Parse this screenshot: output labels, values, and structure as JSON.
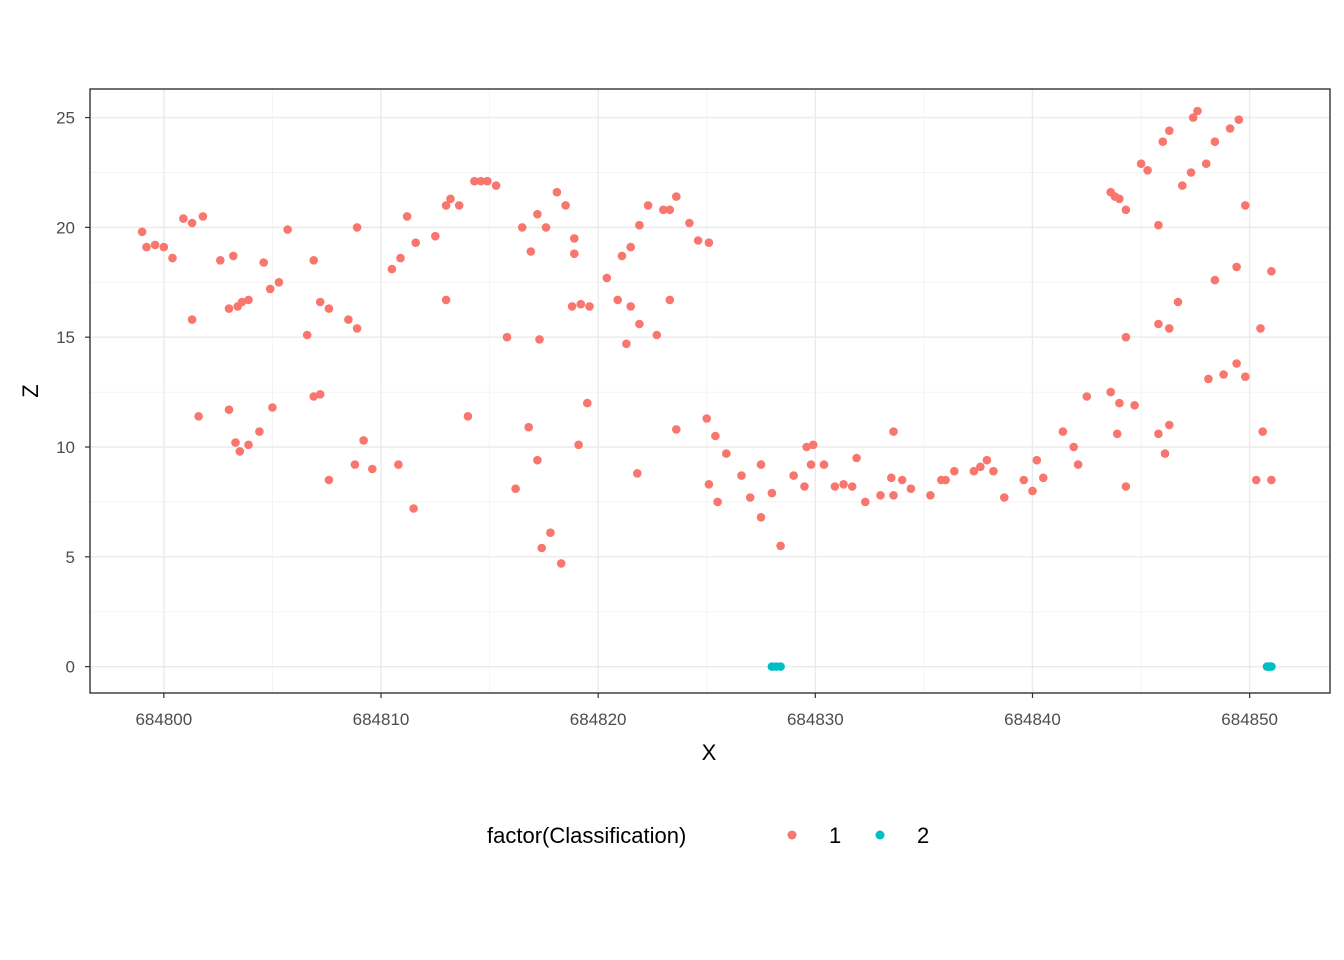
{
  "chart_data": {
    "type": "scatter",
    "xlabel": "X",
    "ylabel": "Z",
    "xlim": [
      684796.6,
      684853.7
    ],
    "ylim": [
      -1.2,
      26.3
    ],
    "x_ticks": [
      684800,
      684810,
      684820,
      684830,
      684840,
      684850
    ],
    "y_ticks": [
      0,
      5,
      10,
      15,
      20,
      25
    ],
    "x_tick_labels": [
      "684800",
      "684810",
      "684820",
      "684830",
      "684840",
      "684850"
    ],
    "y_tick_labels": [
      "0",
      "5",
      "10",
      "15",
      "20",
      "25"
    ],
    "grid": true,
    "legend": {
      "title": "factor(Classification)",
      "position": "bottom"
    },
    "series": [
      {
        "name": "1",
        "color": "#F8766D",
        "points": [
          [
            684799.0,
            19.8
          ],
          [
            684799.2,
            19.1
          ],
          [
            684799.6,
            19.2
          ],
          [
            684800.0,
            19.1
          ],
          [
            684800.4,
            18.6
          ],
          [
            684800.9,
            20.4
          ],
          [
            684801.3,
            20.2
          ],
          [
            684801.3,
            15.8
          ],
          [
            684801.6,
            11.4
          ],
          [
            684801.8,
            20.5
          ],
          [
            684802.6,
            18.5
          ],
          [
            684803.0,
            11.7
          ],
          [
            684803.0,
            16.3
          ],
          [
            684803.2,
            18.7
          ],
          [
            684803.3,
            10.2
          ],
          [
            684803.4,
            16.4
          ],
          [
            684803.5,
            9.8
          ],
          [
            684803.6,
            16.6
          ],
          [
            684803.9,
            10.1
          ],
          [
            684803.9,
            16.7
          ],
          [
            684804.4,
            10.7
          ],
          [
            684804.6,
            18.4
          ],
          [
            684804.9,
            17.2
          ],
          [
            684805.0,
            11.8
          ],
          [
            684805.3,
            17.5
          ],
          [
            684805.7,
            19.9
          ],
          [
            684806.6,
            15.1
          ],
          [
            684806.9,
            18.5
          ],
          [
            684806.9,
            12.3
          ],
          [
            684807.2,
            12.4
          ],
          [
            684807.2,
            16.6
          ],
          [
            684807.6,
            8.5
          ],
          [
            684807.6,
            16.3
          ],
          [
            684808.5,
            15.8
          ],
          [
            684808.8,
            9.2
          ],
          [
            684808.9,
            20.0
          ],
          [
            684808.9,
            15.4
          ],
          [
            684809.2,
            10.3
          ],
          [
            684809.6,
            9.0
          ],
          [
            684810.5,
            18.1
          ],
          [
            684810.8,
            9.2
          ],
          [
            684810.9,
            18.6
          ],
          [
            684811.2,
            20.5
          ],
          [
            684811.5,
            7.2
          ],
          [
            684811.6,
            19.3
          ],
          [
            684812.5,
            19.6
          ],
          [
            684813.0,
            21.0
          ],
          [
            684813.0,
            16.7
          ],
          [
            684813.2,
            21.3
          ],
          [
            684813.6,
            21.0
          ],
          [
            684814.0,
            11.4
          ],
          [
            684814.3,
            22.1
          ],
          [
            684814.6,
            22.1
          ],
          [
            684814.9,
            22.1
          ],
          [
            684815.3,
            21.9
          ],
          [
            684815.8,
            15.0
          ],
          [
            684816.2,
            8.1
          ],
          [
            684816.5,
            20.0
          ],
          [
            684816.8,
            10.9
          ],
          [
            684816.9,
            18.9
          ],
          [
            684817.2,
            20.6
          ],
          [
            684817.3,
            14.9
          ],
          [
            684817.2,
            9.4
          ],
          [
            684817.4,
            5.4
          ],
          [
            684817.6,
            20.0
          ],
          [
            684817.8,
            6.1
          ],
          [
            684818.1,
            21.6
          ],
          [
            684818.3,
            4.7
          ],
          [
            684818.5,
            21.0
          ],
          [
            684818.8,
            16.4
          ],
          [
            684818.9,
            18.8
          ],
          [
            684818.9,
            19.5
          ],
          [
            684819.2,
            16.5
          ],
          [
            684819.1,
            10.1
          ],
          [
            684819.5,
            12.0
          ],
          [
            684819.6,
            16.4
          ],
          [
            684820.4,
            17.7
          ],
          [
            684820.9,
            16.7
          ],
          [
            684821.1,
            18.7
          ],
          [
            684821.3,
            14.7
          ],
          [
            684821.5,
            16.4
          ],
          [
            684821.5,
            19.1
          ],
          [
            684821.8,
            8.8
          ],
          [
            684821.9,
            15.6
          ],
          [
            684821.9,
            20.1
          ],
          [
            684822.3,
            21.0
          ],
          [
            684822.7,
            15.1
          ],
          [
            684823.0,
            20.8
          ],
          [
            684823.3,
            20.8
          ],
          [
            684823.3,
            16.7
          ],
          [
            684823.6,
            21.4
          ],
          [
            684823.6,
            10.8
          ],
          [
            684824.2,
            20.2
          ],
          [
            684824.6,
            19.4
          ],
          [
            684825.0,
            11.3
          ],
          [
            684825.1,
            19.3
          ],
          [
            684825.1,
            8.3
          ],
          [
            684825.4,
            10.5
          ],
          [
            684825.5,
            7.5
          ],
          [
            684825.9,
            9.7
          ],
          [
            684826.6,
            8.7
          ],
          [
            684827.0,
            7.7
          ],
          [
            684827.5,
            6.8
          ],
          [
            684827.5,
            9.2
          ],
          [
            684828.0,
            7.9
          ],
          [
            684828.4,
            5.5
          ],
          [
            684829.0,
            8.7
          ],
          [
            684829.5,
            8.2
          ],
          [
            684829.6,
            10.0
          ],
          [
            684829.8,
            9.2
          ],
          [
            684829.9,
            10.1
          ],
          [
            684830.4,
            9.2
          ],
          [
            684830.9,
            8.2
          ],
          [
            684831.3,
            8.3
          ],
          [
            684831.7,
            8.2
          ],
          [
            684831.9,
            9.5
          ],
          [
            684832.3,
            7.5
          ],
          [
            684833.0,
            7.8
          ],
          [
            684833.5,
            8.6
          ],
          [
            684833.6,
            7.8
          ],
          [
            684833.6,
            10.7
          ],
          [
            684834.0,
            8.5
          ],
          [
            684834.4,
            8.1
          ],
          [
            684835.3,
            7.8
          ],
          [
            684835.8,
            8.5
          ],
          [
            684836.0,
            8.5
          ],
          [
            684836.4,
            8.9
          ],
          [
            684837.3,
            8.9
          ],
          [
            684837.6,
            9.1
          ],
          [
            684837.9,
            9.4
          ],
          [
            684838.2,
            8.9
          ],
          [
            684838.7,
            7.7
          ],
          [
            684839.6,
            8.5
          ],
          [
            684840.0,
            8.0
          ],
          [
            684840.2,
            9.4
          ],
          [
            684840.5,
            8.6
          ],
          [
            684841.4,
            10.7
          ],
          [
            684841.9,
            10.0
          ],
          [
            684842.1,
            9.2
          ],
          [
            684842.5,
            12.3
          ],
          [
            684843.6,
            12.5
          ],
          [
            684843.6,
            21.6
          ],
          [
            684843.8,
            21.4
          ],
          [
            684843.9,
            10.6
          ],
          [
            684844.0,
            21.3
          ],
          [
            684844.0,
            12.0
          ],
          [
            684844.3,
            8.2
          ],
          [
            684844.3,
            15.0
          ],
          [
            684844.3,
            20.8
          ],
          [
            684844.7,
            11.9
          ],
          [
            684845.0,
            22.9
          ],
          [
            684845.3,
            22.6
          ],
          [
            684845.8,
            20.1
          ],
          [
            684845.8,
            10.6
          ],
          [
            684845.8,
            15.6
          ],
          [
            684846.0,
            23.9
          ],
          [
            684846.1,
            9.7
          ],
          [
            684846.3,
            15.4
          ],
          [
            684846.3,
            11.0
          ],
          [
            684846.3,
            24.4
          ],
          [
            684846.7,
            16.6
          ],
          [
            684846.9,
            21.9
          ],
          [
            684847.3,
            22.5
          ],
          [
            684847.4,
            25.0
          ],
          [
            684847.6,
            25.3
          ],
          [
            684848.0,
            22.9
          ],
          [
            684848.1,
            13.1
          ],
          [
            684848.4,
            23.9
          ],
          [
            684848.4,
            17.6
          ],
          [
            684848.8,
            13.3
          ],
          [
            684849.1,
            24.5
          ],
          [
            684849.4,
            13.8
          ],
          [
            684849.4,
            18.2
          ],
          [
            684849.5,
            24.9
          ],
          [
            684849.8,
            21.0
          ],
          [
            684849.8,
            13.2
          ],
          [
            684850.3,
            8.5
          ],
          [
            684850.5,
            15.4
          ],
          [
            684850.6,
            10.7
          ],
          [
            684851.0,
            18.0
          ],
          [
            684851.0,
            8.5
          ]
        ]
      },
      {
        "name": "2",
        "color": "#00BFC4",
        "points": [
          [
            684828.0,
            0.0
          ],
          [
            684828.2,
            0.0
          ],
          [
            684828.4,
            0.0
          ],
          [
            684850.8,
            0.0
          ],
          [
            684850.9,
            0.0
          ],
          [
            684851.0,
            0.0
          ]
        ]
      }
    ]
  }
}
